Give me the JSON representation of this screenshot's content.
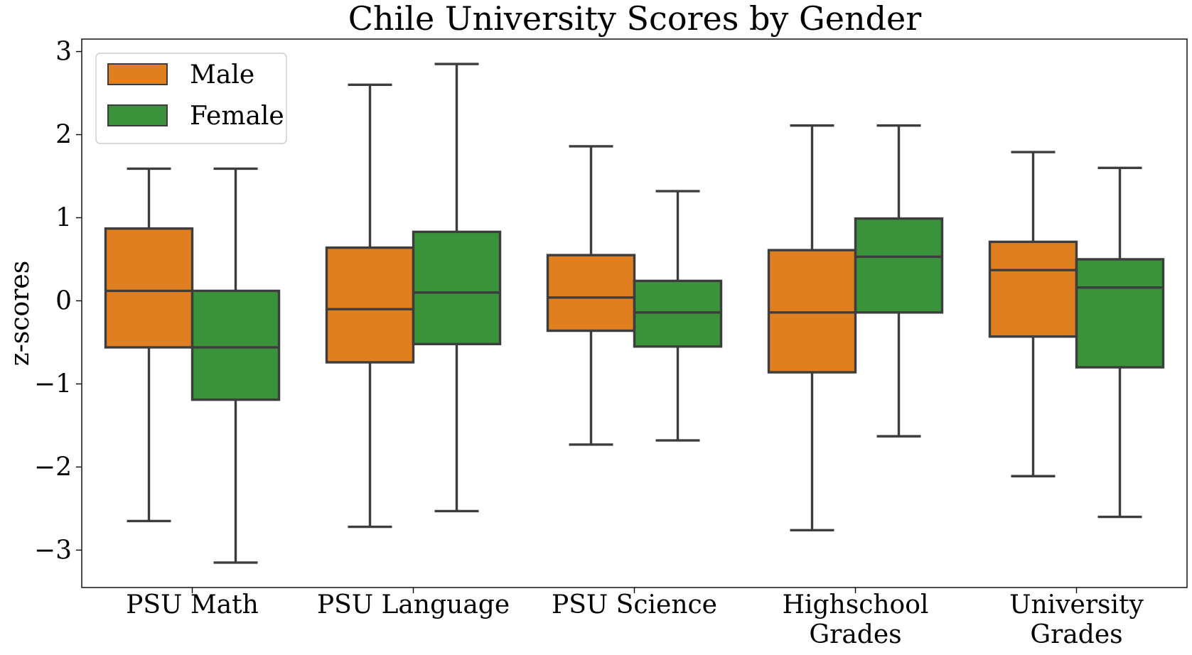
{
  "chart_data": {
    "type": "box",
    "title": "Chile University Scores by Gender",
    "xlabel": "",
    "ylabel": "z-scores",
    "ylim": [
      -3.45,
      3.15
    ],
    "yticks": [
      {
        "value": -3,
        "label": "−3"
      },
      {
        "value": -2,
        "label": "−2"
      },
      {
        "value": -1,
        "label": "−1"
      },
      {
        "value": 0,
        "label": "0"
      },
      {
        "value": 1,
        "label": "1"
      },
      {
        "value": 2,
        "label": "2"
      },
      {
        "value": 3,
        "label": "3"
      }
    ],
    "categories": [
      {
        "label": [
          "PSU Math"
        ]
      },
      {
        "label": [
          "PSU Language"
        ]
      },
      {
        "label": [
          "PSU Science"
        ]
      },
      {
        "label": [
          "Highschool",
          "Grades"
        ]
      },
      {
        "label": [
          "University",
          "Grades"
        ]
      }
    ],
    "grid": false,
    "legend_position": "top-left",
    "series": [
      {
        "name": "Male",
        "color": "#e07f1f",
        "boxes": [
          {
            "whisker_low": -2.65,
            "q1": -0.56,
            "median": 0.12,
            "q3": 0.87,
            "whisker_high": 1.59
          },
          {
            "whisker_low": -2.72,
            "q1": -0.74,
            "median": -0.1,
            "q3": 0.64,
            "whisker_high": 2.6
          },
          {
            "whisker_low": -1.73,
            "q1": -0.36,
            "median": 0.04,
            "q3": 0.55,
            "whisker_high": 1.86
          },
          {
            "whisker_low": -2.76,
            "q1": -0.86,
            "median": -0.14,
            "q3": 0.61,
            "whisker_high": 2.11
          },
          {
            "whisker_low": -2.11,
            "q1": -0.43,
            "median": 0.37,
            "q3": 0.71,
            "whisker_high": 1.79
          }
        ]
      },
      {
        "name": "Female",
        "color": "#3a923a",
        "boxes": [
          {
            "whisker_low": -3.15,
            "q1": -1.19,
            "median": -0.56,
            "q3": 0.12,
            "whisker_high": 1.59
          },
          {
            "whisker_low": -2.53,
            "q1": -0.52,
            "median": 0.1,
            "q3": 0.83,
            "whisker_high": 2.85
          },
          {
            "whisker_low": -1.68,
            "q1": -0.55,
            "median": -0.14,
            "q3": 0.24,
            "whisker_high": 1.32
          },
          {
            "whisker_low": -1.63,
            "q1": -0.14,
            "median": 0.53,
            "q3": 0.99,
            "whisker_high": 2.11
          },
          {
            "whisker_low": -2.6,
            "q1": -0.8,
            "median": 0.16,
            "q3": 0.5,
            "whisker_high": 1.6
          }
        ]
      }
    ]
  }
}
